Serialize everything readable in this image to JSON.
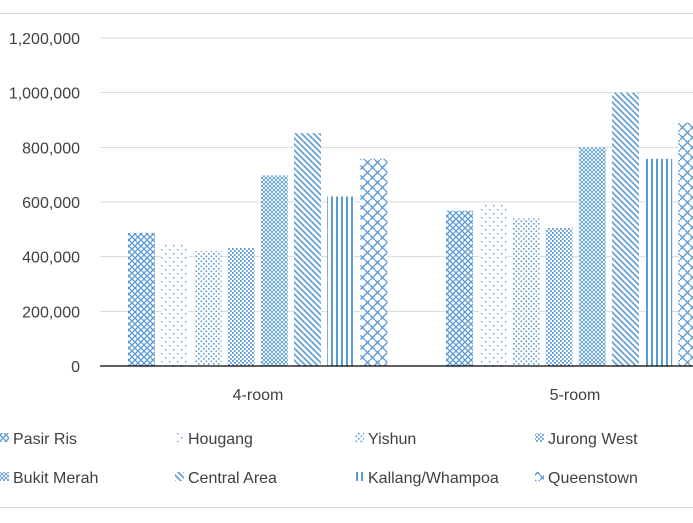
{
  "chart_data": {
    "type": "bar",
    "categories": [
      "4-room",
      "5-room"
    ],
    "series": [
      {
        "name": "Pasir Ris",
        "values": [
          487000,
          568000
        ],
        "pattern": "diamond-grid"
      },
      {
        "name": "Hougang",
        "values": [
          450000,
          598000
        ],
        "pattern": "sparse-dots"
      },
      {
        "name": "Yishun",
        "values": [
          420000,
          540000
        ],
        "pattern": "dots"
      },
      {
        "name": "Jurong West",
        "values": [
          432000,
          505000
        ],
        "pattern": "dense-dots"
      },
      {
        "name": "Bukit Merah",
        "values": [
          697000,
          800000
        ],
        "pattern": "dense-grid"
      },
      {
        "name": "Central Area",
        "values": [
          852000,
          1000000
        ],
        "pattern": "diagonal"
      },
      {
        "name": "Kallang/Whampoa",
        "values": [
          620000,
          758000
        ],
        "pattern": "vertical"
      },
      {
        "name": "Queenstown",
        "values": [
          758000,
          890000
        ],
        "pattern": "zigzag"
      }
    ],
    "yticks": [
      "0",
      "200,000",
      "400,000",
      "600,000",
      "800,000",
      "1,000,000",
      "1,200,000"
    ],
    "ylim": [
      0,
      1200000
    ],
    "grid": true,
    "legend": "bottom",
    "color": "#5b9bd5"
  }
}
